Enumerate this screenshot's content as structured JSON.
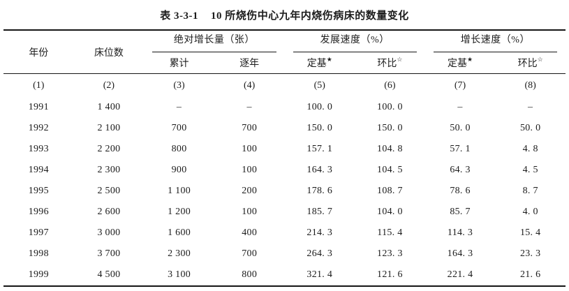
{
  "title": {
    "prefix": "表 3-3-1",
    "text": "10 所烧伤中心九年内烧伤病床的数量变化"
  },
  "table": {
    "group_headers": {
      "year": "年份",
      "beds": "床位数",
      "absolute_growth": "绝对增长量（张）",
      "development_speed": "发展速度（%）",
      "growth_speed": "增长速度（%）"
    },
    "sub_headers": [
      {
        "text": "累计",
        "sup": ""
      },
      {
        "text": "逐年",
        "sup": ""
      },
      {
        "text": "定基",
        "sup": "★"
      },
      {
        "text": "环比",
        "sup": "☆"
      },
      {
        "text": "定基",
        "sup": "★"
      },
      {
        "text": "环比",
        "sup": "☆"
      }
    ],
    "col_numbers": [
      "(1)",
      "(2)",
      "(3)",
      "(4)",
      "(5)",
      "(6)",
      "(7)",
      "(8)"
    ],
    "rows": [
      [
        "1991",
        "1 400",
        "–",
        "–",
        "100. 0",
        "100. 0",
        "–",
        "–"
      ],
      [
        "1992",
        "2 100",
        "700",
        "700",
        "150. 0",
        "150. 0",
        "50. 0",
        "50. 0"
      ],
      [
        "1993",
        "2 200",
        "800",
        "100",
        "157. 1",
        "104. 8",
        "57. 1",
        "4. 8"
      ],
      [
        "1994",
        "2 300",
        "900",
        "100",
        "164. 3",
        "104. 5",
        "64. 3",
        "4. 5"
      ],
      [
        "1995",
        "2 500",
        "1 100",
        "200",
        "178. 6",
        "108. 7",
        "78. 6",
        "8. 7"
      ],
      [
        "1996",
        "2 600",
        "1 200",
        "100",
        "185. 7",
        "104. 0",
        "85. 7",
        "4. 0"
      ],
      [
        "1997",
        "3 000",
        "1 600",
        "400",
        "214. 3",
        "115. 4",
        "114. 3",
        "15. 4"
      ],
      [
        "1998",
        "3 700",
        "2 300",
        "700",
        "264. 3",
        "123. 3",
        "164. 3",
        "23. 3"
      ],
      [
        "1999",
        "4 500",
        "3 100",
        "800",
        "321. 4",
        "121. 6",
        "221. 4",
        "21. 6"
      ]
    ]
  }
}
